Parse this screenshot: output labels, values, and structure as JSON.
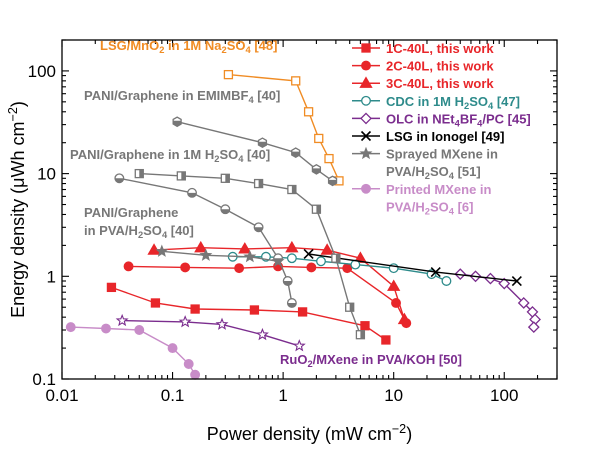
{
  "chart_data": {
    "type": "scatter",
    "title": "",
    "xlabel": "Power density (mW cm⁻²)",
    "ylabel": "Energy density (μWh cm⁻²)",
    "xscale": "log",
    "yscale": "log",
    "xlim": [
      0.01,
      300
    ],
    "ylim": [
      0.1,
      200
    ],
    "x_tick_labels": [
      "0.01",
      "0.1",
      "1",
      "10",
      "100"
    ],
    "y_tick_labels": [
      "0.1",
      "1",
      "10",
      "100"
    ],
    "legend_position": "top-right",
    "series": [
      {
        "name": "1C-40L, this work",
        "color": "#e8262a",
        "marker": "square",
        "filled": true,
        "x": [
          0.028,
          0.07,
          0.16,
          0.55,
          1.5,
          5.5,
          8.5
        ],
        "y": [
          0.78,
          0.55,
          0.48,
          0.47,
          0.45,
          0.33,
          0.24
        ]
      },
      {
        "name": "2C-40L, this work",
        "color": "#e8262a",
        "marker": "circle",
        "filled": true,
        "x": [
          0.04,
          0.13,
          0.4,
          0.9,
          1.8,
          3.8,
          10.5,
          13
        ],
        "y": [
          1.25,
          1.22,
          1.2,
          1.25,
          1.22,
          1.2,
          0.55,
          0.35
        ]
      },
      {
        "name": "3C-40L, this work",
        "color": "#e8262a",
        "marker": "triangle",
        "filled": true,
        "x": [
          0.068,
          0.18,
          0.45,
          1.2,
          2.5,
          5.0,
          10.0,
          12.5
        ],
        "y": [
          1.8,
          1.9,
          1.85,
          1.9,
          1.8,
          1.5,
          0.8,
          0.38
        ]
      },
      {
        "name": "CDC in 1M H₂SO₄ [47]",
        "color": "#2e8b8b",
        "marker": "circle",
        "filled": false,
        "x": [
          0.35,
          0.7,
          1.2,
          2.2,
          4.5,
          10.0,
          22.0,
          30.0
        ],
        "y": [
          1.55,
          1.55,
          1.5,
          1.4,
          1.3,
          1.2,
          1.05,
          0.9
        ]
      },
      {
        "name": "OLC in NEt₄BF₄/PC [45]",
        "color": "#7b2d8e",
        "marker": "diamond",
        "filled": false,
        "x": [
          40,
          55,
          75,
          100,
          150,
          180,
          190,
          185
        ],
        "y": [
          1.05,
          1.0,
          0.95,
          0.85,
          0.55,
          0.45,
          0.38,
          0.32
        ]
      },
      {
        "name": "LSG in Ionogel [49]",
        "color": "#000000",
        "marker": "x",
        "filled": false,
        "x": [
          1.7,
          24,
          130
        ],
        "y": [
          1.65,
          1.1,
          0.9
        ]
      },
      {
        "name": "Sprayed MXene in PVA/H₂SO₄ [51]",
        "color": "#777777",
        "marker": "star",
        "filled": true,
        "x": [
          0.08,
          0.2,
          0.5,
          0.9
        ],
        "y": [
          1.75,
          1.6,
          1.55,
          1.4
        ]
      },
      {
        "name": "Printed MXene in PVA/H₂SO₄ [6]",
        "color": "#c88cc8",
        "marker": "circle",
        "filled": true,
        "x": [
          0.012,
          0.025,
          0.05,
          0.1,
          0.14,
          0.16
        ],
        "y": [
          0.32,
          0.31,
          0.3,
          0.2,
          0.14,
          0.11
        ]
      },
      {
        "name": "LSG/MnO₂ in 1M Na₂SO₄ [48]",
        "color": "#f08c24",
        "marker": "square",
        "filled": false,
        "x": [
          0.32,
          1.3,
          1.7,
          2.1,
          2.6,
          3.2
        ],
        "y": [
          92,
          80,
          40,
          22,
          14,
          8.5
        ]
      },
      {
        "name": "PANI/Graphene in EMIMBF₄ [40]",
        "color": "#777777",
        "marker": "hexagon",
        "filled": true,
        "x": [
          0.11,
          0.65,
          1.3,
          2.0,
          2.8
        ],
        "y": [
          32,
          20,
          16,
          11,
          8.5
        ]
      },
      {
        "name": "PANI/Graphene in 1M H₂SO₄ [40]",
        "color": "#777777",
        "marker": "square-half",
        "filled": true,
        "x": [
          0.05,
          0.12,
          0.3,
          0.6,
          1.2,
          2.0,
          3.0,
          4.0,
          5.0
        ],
        "y": [
          10.0,
          9.5,
          9.0,
          8.0,
          7.0,
          4.5,
          1.5,
          0.5,
          0.27
        ]
      },
      {
        "name": "PANI/Graphene in PVA/H₂SO₄ [40]",
        "color": "#777777",
        "marker": "circle-half",
        "filled": true,
        "x": [
          0.033,
          0.15,
          0.3,
          0.6,
          0.9,
          1.1,
          1.2
        ],
        "y": [
          9.0,
          6.5,
          4.5,
          3.0,
          1.5,
          0.9,
          0.55
        ]
      },
      {
        "name": "RuO₂/MXene in PVA/KOH [50]",
        "color": "#7b2d8e",
        "marker": "star",
        "filled": false,
        "x": [
          0.035,
          0.13,
          0.28,
          0.65,
          1.4
        ],
        "y": [
          0.37,
          0.36,
          0.34,
          0.27,
          0.21
        ]
      }
    ],
    "legend": [
      {
        "color": "#e8262a",
        "marker": "square",
        "filled": true,
        "text": "1C-40L, this work"
      },
      {
        "color": "#e8262a",
        "marker": "circle",
        "filled": true,
        "text": "2C-40L, this work"
      },
      {
        "color": "#e8262a",
        "marker": "triangle",
        "filled": true,
        "text": "3C-40L, this work"
      },
      {
        "color": "#2e8b8b",
        "marker": "circle",
        "filled": false,
        "text": "CDC in 1M H₂SO₄ [47]"
      },
      {
        "color": "#7b2d8e",
        "marker": "diamond",
        "filled": false,
        "text": "OLC in NEt₄BF₄/PC [45]"
      },
      {
        "color": "#000000",
        "marker": "x",
        "filled": false,
        "text": "LSG in Ionogel [49]"
      },
      {
        "color": "#777777",
        "marker": "star",
        "filled": true,
        "text": "Sprayed MXene in",
        "text2": "PVA/H₂SO₄ [51]"
      },
      {
        "color": "#c88cc8",
        "marker": "circle",
        "filled": true,
        "text": "Printed MXene in",
        "text2": "PVA/H₂SO₄ [6]"
      }
    ],
    "annotations": [
      {
        "text": "LSG/MnO₂ in 1M Na₂SO₄ [48]",
        "color": "#f08c24"
      },
      {
        "text": "PANI/Graphene in EMIMBF₄ [40]",
        "color": "#777777"
      },
      {
        "text": "PANI/Graphene in 1M H₂SO₄ [40]",
        "color": "#777777"
      },
      {
        "text": "PANI/Graphene",
        "text2": "in PVA/H₂SO₄ [40]",
        "color": "#777777"
      },
      {
        "text": "RuO₂/MXene in PVA/KOH [50]",
        "color": "#7b2d8e"
      }
    ]
  }
}
